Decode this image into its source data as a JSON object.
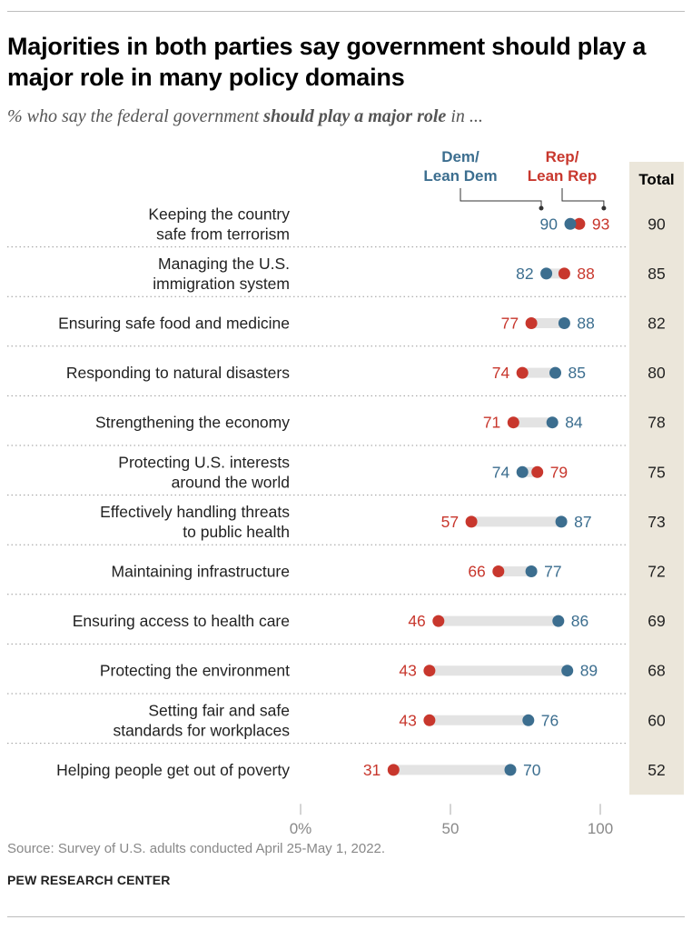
{
  "title": "Majorities in both parties say government should play a major role in many policy domains",
  "subtitle": {
    "prefix": "% who say the federal government ",
    "emphasis": "should play a major role",
    "suffix": " in ..."
  },
  "source": "Source: Survey of U.S. adults conducted April 25-May 1, 2022.",
  "organization": "PEW RESEARCH CENTER",
  "colors": {
    "dem": "#3c6e8f",
    "rep": "#c8372d",
    "connector": "#e3e3e3",
    "total_band": "#ebe6da"
  },
  "chart_data": {
    "type": "dot",
    "x_axis": {
      "min": 0,
      "max": 100,
      "ticks": [
        "0%",
        "50",
        "100"
      ]
    },
    "legend": {
      "dem": "Dem/\nLean Dem",
      "rep": "Rep/\nLean Rep"
    },
    "total_header": "Total",
    "rows": [
      {
        "label": "Keeping the country\nsafe from terrorism",
        "dem": 90,
        "rep": 93,
        "total": 90
      },
      {
        "label": "Managing the U.S.\nimmigration system",
        "dem": 82,
        "rep": 88,
        "total": 85
      },
      {
        "label": "Ensuring safe food and medicine",
        "dem": 88,
        "rep": 77,
        "total": 82
      },
      {
        "label": "Responding to natural disasters",
        "dem": 85,
        "rep": 74,
        "total": 80
      },
      {
        "label": "Strengthening  the economy",
        "dem": 84,
        "rep": 71,
        "total": 78
      },
      {
        "label": "Protecting U.S. interests\naround the world",
        "dem": 74,
        "rep": 79,
        "total": 75
      },
      {
        "label": "Effectively handling threats\nto public health",
        "dem": 87,
        "rep": 57,
        "total": 73
      },
      {
        "label": "Maintaining infrastructure",
        "dem": 77,
        "rep": 66,
        "total": 72
      },
      {
        "label": "Ensuring access to health care",
        "dem": 86,
        "rep": 46,
        "total": 69
      },
      {
        "label": "Protecting the environment",
        "dem": 89,
        "rep": 43,
        "total": 68
      },
      {
        "label": "Setting fair and safe\nstandards for workplaces",
        "dem": 76,
        "rep": 43,
        "total": 60
      },
      {
        "label": "Helping people get out of poverty",
        "dem": 70,
        "rep": 31,
        "total": 52
      }
    ]
  }
}
